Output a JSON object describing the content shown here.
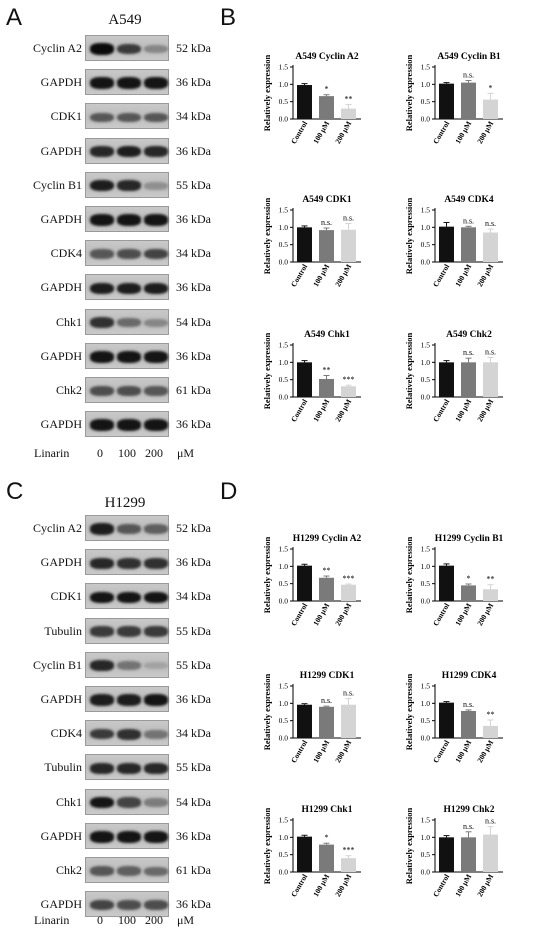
{
  "panels": {
    "A": "A",
    "B": "B",
    "C": "C",
    "D": "D"
  },
  "blots": [
    {
      "title": "A549",
      "rows": [
        {
          "label": "Cyclin A2",
          "kda": "52 kDa",
          "intensity": [
            1.0,
            0.75,
            0.35
          ]
        },
        {
          "label": "GAPDH",
          "kda": "36 kDa",
          "intensity": [
            0.95,
            0.95,
            0.95
          ]
        },
        {
          "label": "CDK1",
          "kda": "34 kDa",
          "intensity": [
            0.6,
            0.6,
            0.6
          ]
        },
        {
          "label": "GAPDH",
          "kda": "36 kDa",
          "intensity": [
            0.85,
            0.9,
            0.85
          ]
        },
        {
          "label": "Cyclin B1",
          "kda": "55 kDa",
          "intensity": [
            0.9,
            0.85,
            0.3
          ]
        },
        {
          "label": "GAPDH",
          "kda": "36 kDa",
          "intensity": [
            0.95,
            0.95,
            0.95
          ]
        },
        {
          "label": "CDK4",
          "kda": "34 kDa",
          "intensity": [
            0.6,
            0.65,
            0.7
          ]
        },
        {
          "label": "GAPDH",
          "kda": "36 kDa",
          "intensity": [
            0.9,
            0.9,
            0.9
          ]
        },
        {
          "label": "Chk1",
          "kda": "54 kDa",
          "intensity": [
            0.8,
            0.5,
            0.35
          ]
        },
        {
          "label": "GAPDH",
          "kda": "36 kDa",
          "intensity": [
            0.95,
            0.95,
            0.95
          ]
        },
        {
          "label": "Chk2",
          "kda": "61 kDa",
          "intensity": [
            0.65,
            0.65,
            0.6
          ]
        },
        {
          "label": "GAPDH",
          "kda": "36 kDa",
          "intensity": [
            0.95,
            0.95,
            0.95
          ]
        }
      ],
      "footer": {
        "label": "Linarin",
        "doses": [
          "0",
          "100",
          "200"
        ],
        "unit": "μM"
      }
    },
    {
      "title": "H1299",
      "rows": [
        {
          "label": "Cyclin A2",
          "kda": "52 kDa",
          "intensity": [
            0.9,
            0.6,
            0.55
          ]
        },
        {
          "label": "GAPDH",
          "kda": "36 kDa",
          "intensity": [
            0.85,
            0.8,
            0.8
          ]
        },
        {
          "label": "CDK1",
          "kda": "34 kDa",
          "intensity": [
            0.95,
            0.95,
            0.95
          ]
        },
        {
          "label": "Tubulin",
          "kda": "55 kDa",
          "intensity": [
            0.75,
            0.75,
            0.75
          ]
        },
        {
          "label": "Cyclin B1",
          "kda": "55 kDa",
          "intensity": [
            0.85,
            0.45,
            0.2
          ]
        },
        {
          "label": "GAPDH",
          "kda": "36 kDa",
          "intensity": [
            0.9,
            0.9,
            0.95
          ]
        },
        {
          "label": "CDK4",
          "kda": "34 kDa",
          "intensity": [
            0.75,
            0.8,
            0.45
          ]
        },
        {
          "label": "Tubulin",
          "kda": "55 kDa",
          "intensity": [
            0.85,
            0.85,
            0.85
          ]
        },
        {
          "label": "Chk1",
          "kda": "54 kDa",
          "intensity": [
            0.95,
            0.7,
            0.4
          ]
        },
        {
          "label": "GAPDH",
          "kda": "36 kDa",
          "intensity": [
            0.95,
            0.95,
            0.95
          ]
        },
        {
          "label": "Chk2",
          "kda": "61 kDa",
          "intensity": [
            0.6,
            0.55,
            0.5
          ]
        },
        {
          "label": "GAPDH",
          "kda": "36 kDa",
          "intensity": [
            0.7,
            0.65,
            0.65
          ]
        }
      ],
      "footer": {
        "label": "Linarin",
        "doses": [
          "0",
          "100",
          "200"
        ],
        "unit": "μM"
      }
    }
  ],
  "bar_colors": [
    "#111111",
    "#7a7a7a",
    "#d4d4d4"
  ],
  "chart_data": [
    {
      "type": "bar",
      "title": "A549 Cyclin A2",
      "categories": [
        "Control",
        "100 μM",
        "200 μM"
      ],
      "values": [
        0.98,
        0.66,
        0.3
      ],
      "errors": [
        0.04,
        0.04,
        0.12
      ],
      "annotations": [
        "",
        "*",
        "**"
      ],
      "ylabel": "Relatively expression",
      "ylim": [
        0,
        1.5
      ],
      "yticks": [
        "0.0",
        "0.5",
        "1.0",
        "1.5"
      ]
    },
    {
      "type": "bar",
      "title": "A549 Cyclin B1",
      "categories": [
        "Control",
        "100 μM",
        "200 μM"
      ],
      "values": [
        1.02,
        1.05,
        0.56
      ],
      "errors": [
        0.03,
        0.06,
        0.18
      ],
      "annotations": [
        "",
        "n.s.",
        "*"
      ],
      "ylabel": "Relatively expression",
      "ylim": [
        0,
        1.5
      ],
      "yticks": [
        "0.0",
        "0.5",
        "1.0",
        "1.5"
      ]
    },
    {
      "type": "bar",
      "title": "A549 CDK1",
      "categories": [
        "Control",
        "100 μM",
        "200 μM"
      ],
      "values": [
        1.0,
        0.92,
        0.93
      ],
      "errors": [
        0.04,
        0.06,
        0.18
      ],
      "annotations": [
        "",
        "n.s.",
        "n.s."
      ],
      "ylabel": "Relatively expression",
      "ylim": [
        0,
        1.5
      ],
      "yticks": [
        "0.0",
        "0.5",
        "1.0",
        "1.5"
      ]
    },
    {
      "type": "bar",
      "title": "A549 CDK4",
      "categories": [
        "Control",
        "100 μM",
        "200 μM"
      ],
      "values": [
        1.02,
        1.0,
        0.85
      ],
      "errors": [
        0.12,
        0.03,
        0.1
      ],
      "annotations": [
        "",
        "n.s.",
        "n.s."
      ],
      "ylabel": "Relatively expression",
      "ylim": [
        0,
        1.5
      ],
      "yticks": [
        "0.0",
        "0.5",
        "1.0",
        "1.5"
      ]
    },
    {
      "type": "bar",
      "title": "A549 Chk1",
      "categories": [
        "Control",
        "100 μM",
        "200 μM"
      ],
      "values": [
        1.0,
        0.52,
        0.31
      ],
      "errors": [
        0.05,
        0.1,
        0.03
      ],
      "annotations": [
        "",
        "**",
        "***"
      ],
      "ylabel": "Relatively expression",
      "ylim": [
        0,
        1.5
      ],
      "yticks": [
        "0.0",
        "0.5",
        "1.0",
        "1.5"
      ]
    },
    {
      "type": "bar",
      "title": "A549 Chk2",
      "categories": [
        "Control",
        "100 μM",
        "200 μM"
      ],
      "values": [
        1.0,
        1.0,
        1.0
      ],
      "errors": [
        0.05,
        0.12,
        0.14
      ],
      "annotations": [
        "",
        "n.s.",
        "n.s."
      ],
      "ylabel": "Relatively expression",
      "ylim": [
        0,
        1.5
      ],
      "yticks": [
        "0.0",
        "0.5",
        "1.0",
        "1.5"
      ]
    },
    {
      "type": "bar",
      "title": "H1299 Cyclin A2",
      "categories": [
        "Control",
        "100 μM",
        "200 μM"
      ],
      "values": [
        1.02,
        0.67,
        0.47
      ],
      "errors": [
        0.04,
        0.05,
        0.02
      ],
      "annotations": [
        "",
        "**",
        "***"
      ],
      "ylabel": "Relatively expression",
      "ylim": [
        0,
        1.5
      ],
      "yticks": [
        "0.0",
        "0.5",
        "1.0",
        "1.5"
      ]
    },
    {
      "type": "bar",
      "title": "H1299 Cyclin B1",
      "categories": [
        "Control",
        "100 μM",
        "200 μM"
      ],
      "values": [
        1.02,
        0.45,
        0.34
      ],
      "errors": [
        0.05,
        0.04,
        0.13
      ],
      "annotations": [
        "",
        "*",
        "**"
      ],
      "ylabel": "Relatively expression",
      "ylim": [
        0,
        1.5
      ],
      "yticks": [
        "0.0",
        "0.5",
        "1.0",
        "1.5"
      ]
    },
    {
      "type": "bar",
      "title": "H1299 CDK1",
      "categories": [
        "Control",
        "100 μM",
        "200 μM"
      ],
      "values": [
        0.96,
        0.9,
        0.96
      ],
      "errors": [
        0.03,
        0.02,
        0.18
      ],
      "annotations": [
        "",
        "n.s.",
        "n.s."
      ],
      "ylabel": "Relatively expression",
      "ylim": [
        0,
        1.5
      ],
      "yticks": [
        "0.0",
        "0.5",
        "1.0",
        "1.5"
      ]
    },
    {
      "type": "bar",
      "title": "H1299 CDK4",
      "categories": [
        "Control",
        "100 μM",
        "200 μM"
      ],
      "values": [
        1.02,
        0.78,
        0.35
      ],
      "errors": [
        0.03,
        0.03,
        0.17
      ],
      "annotations": [
        "",
        "n.s.",
        "**"
      ],
      "ylabel": "Relatively expression",
      "ylim": [
        0,
        1.5
      ],
      "yticks": [
        "0.0",
        "0.5",
        "1.0",
        "1.5"
      ]
    },
    {
      "type": "bar",
      "title": "H1299 Chk1",
      "categories": [
        "Control",
        "100 μM",
        "200 μM"
      ],
      "values": [
        1.02,
        0.79,
        0.4
      ],
      "errors": [
        0.04,
        0.04,
        0.07
      ],
      "annotations": [
        "",
        "*",
        "***"
      ],
      "ylabel": "Relatively expression",
      "ylim": [
        0,
        1.5
      ],
      "yticks": [
        "0.0",
        "0.5",
        "1.0",
        "1.5"
      ]
    },
    {
      "type": "bar",
      "title": "H1299 Chk2",
      "categories": [
        "Control",
        "100 μM",
        "200 μM"
      ],
      "values": [
        1.0,
        1.0,
        1.08
      ],
      "errors": [
        0.05,
        0.16,
        0.23
      ],
      "annotations": [
        "",
        "n.s.",
        "n.s."
      ],
      "ylabel": "Relatively expression",
      "ylim": [
        0,
        1.5
      ],
      "yticks": [
        "0.0",
        "0.5",
        "1.0",
        "1.5"
      ]
    }
  ]
}
